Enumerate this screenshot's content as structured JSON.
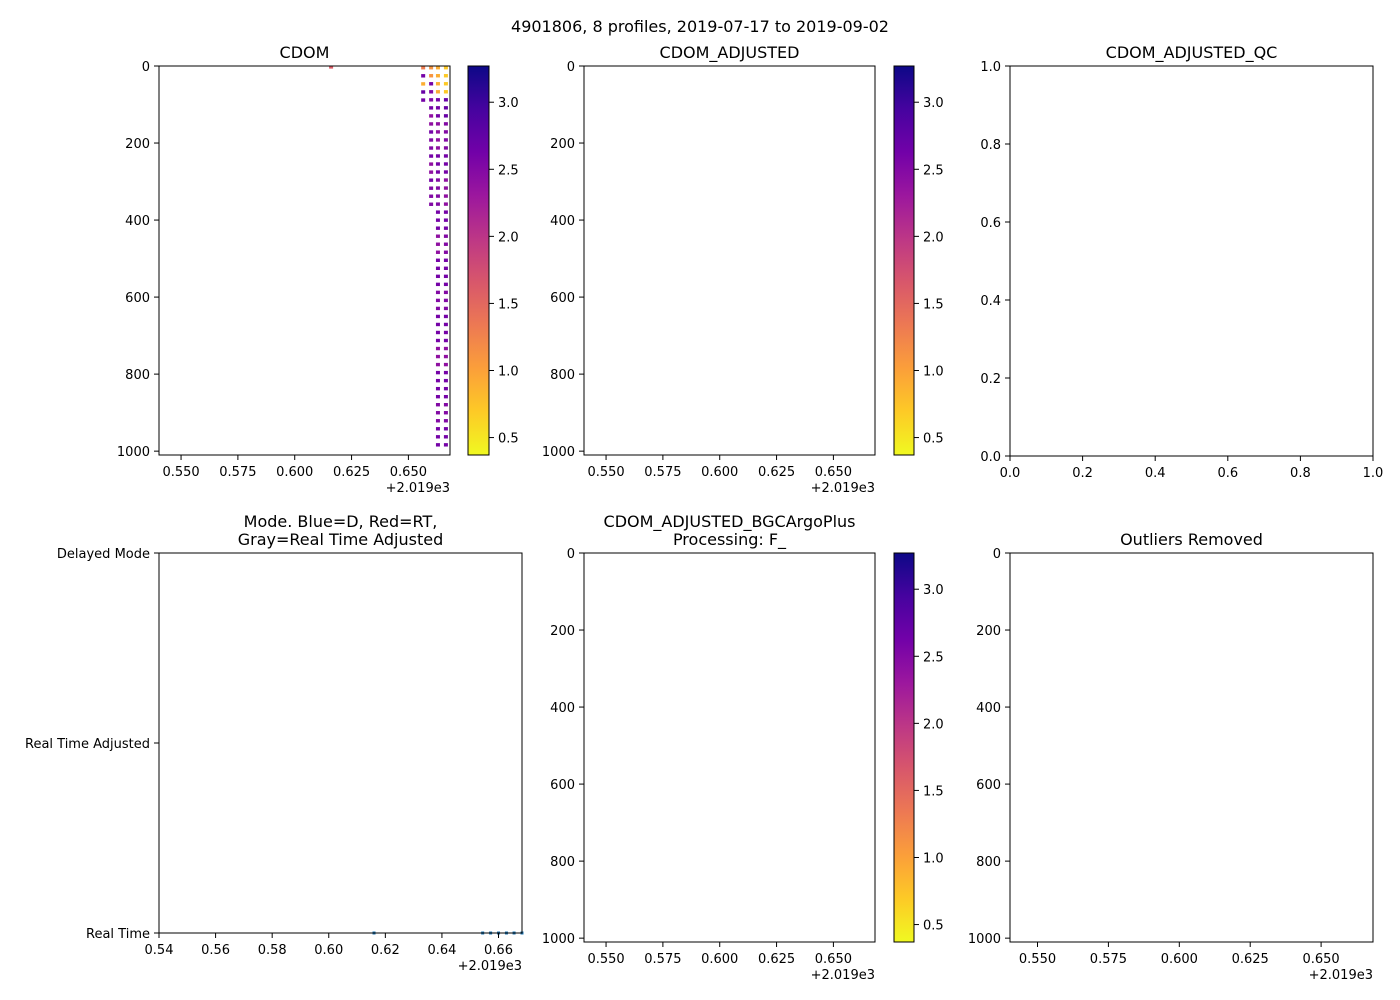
{
  "title": "4901806, 8 profiles, 2019-07-17 to 2019-09-02",
  "offset_label": "+2.019e3",
  "colors": {
    "cmap": [
      "#f0f921",
      "#fdca26",
      "#fb9f3a",
      "#ed7953",
      "#d8576b",
      "#bd3786",
      "#9c179e",
      "#7201a8",
      "#46039f",
      "#0d0887"
    ],
    "mode_point": "#1f77b4"
  },
  "chart_data": [
    {
      "id": "cdom",
      "type": "heatmap",
      "title": "CDOM",
      "xlim": [
        0.5403,
        0.6683
      ],
      "xticks": [
        0.55,
        0.575,
        0.6,
        0.625,
        0.65
      ],
      "xtick_labels": [
        "0.550",
        "0.575",
        "0.600",
        "0.625",
        "0.650"
      ],
      "ylim": [
        1010,
        0
      ],
      "yticks": [
        0,
        200,
        400,
        600,
        800,
        1000
      ],
      "ytick_labels": [
        "0",
        "200",
        "400",
        "600",
        "800",
        "1000"
      ],
      "colorbar": {
        "vmin": 0.37,
        "vmax": 3.27,
        "ticks": [
          0.5,
          1.0,
          1.5,
          2.0,
          2.5,
          3.0
        ],
        "tick_labels": [
          "0.5",
          "1.0",
          "1.5",
          "2.0",
          "2.5",
          "3.0"
        ]
      },
      "profiles": [
        {
          "x": 0.616,
          "depth_min": 0,
          "depth_max": 8,
          "values": [
            1.6
          ]
        },
        {
          "x": 0.6565,
          "depth_min": 0,
          "depth_max": 105,
          "values": [
            1.3,
            2.6,
            2.4,
            0.9,
            2.7,
            2.5,
            2.6,
            2.4
          ]
        },
        {
          "x": 0.66,
          "depth_min": 0,
          "depth_max": 365,
          "values": [
            1.1,
            2.6,
            2.5,
            2.6,
            2.4,
            2.6,
            2.5,
            2.6,
            2.4,
            2.6,
            2.5,
            2.5
          ]
        },
        {
          "x": 0.663,
          "depth_min": 0,
          "depth_max": 1000,
          "values": [
            0.9,
            2.6,
            2.4,
            2.6,
            2.5,
            2.6,
            2.4,
            2.6,
            2.5,
            2.6,
            2.4,
            2.6,
            2.5,
            2.6
          ]
        },
        {
          "x": 0.6665,
          "depth_min": 0,
          "depth_max": 1000,
          "values": [
            0.7,
            2.7,
            2.5,
            2.6,
            2.4,
            2.6,
            2.5,
            2.6,
            2.5,
            2.6,
            2.4,
            2.6,
            2.5,
            2.6
          ]
        }
      ]
    },
    {
      "id": "cdom_adjusted",
      "type": "heatmap",
      "title": "CDOM_ADJUSTED",
      "xlim": [
        0.5403,
        0.6683
      ],
      "xticks": [
        0.55,
        0.575,
        0.6,
        0.625,
        0.65
      ],
      "xtick_labels": [
        "0.550",
        "0.575",
        "0.600",
        "0.625",
        "0.650"
      ],
      "ylim": [
        1010,
        0
      ],
      "yticks": [
        0,
        200,
        400,
        600,
        800,
        1000
      ],
      "ytick_labels": [
        "0",
        "200",
        "400",
        "600",
        "800",
        "1000"
      ],
      "colorbar": {
        "vmin": 0.37,
        "vmax": 3.27,
        "ticks": [
          0.5,
          1.0,
          1.5,
          2.0,
          2.5,
          3.0
        ],
        "tick_labels": [
          "0.5",
          "1.0",
          "1.5",
          "2.0",
          "2.5",
          "3.0"
        ]
      },
      "profiles": []
    },
    {
      "id": "cdom_adjusted_qc",
      "type": "scatter",
      "title": "CDOM_ADJUSTED_QC",
      "xlim": [
        0,
        1
      ],
      "xticks": [
        0,
        0.2,
        0.4,
        0.6,
        0.8,
        1.0
      ],
      "xtick_labels": [
        "0.0",
        "0.2",
        "0.4",
        "0.6",
        "0.8",
        "1.0"
      ],
      "ylim": [
        0,
        1
      ],
      "yticks": [
        0,
        0.2,
        0.4,
        0.6,
        0.8,
        1.0
      ],
      "ytick_labels": [
        "0.0",
        "0.2",
        "0.4",
        "0.6",
        "0.8",
        "1.0"
      ],
      "points": []
    },
    {
      "id": "mode",
      "type": "scatter",
      "title": "Mode. Blue=D, Red=RT,",
      "title_line2": "Gray=Real Time Adjusted",
      "xlim": [
        0.54,
        0.6683
      ],
      "xticks": [
        0.54,
        0.56,
        0.58,
        0.6,
        0.62,
        0.64,
        0.66
      ],
      "xtick_labels": [
        "0.54",
        "0.56",
        "0.58",
        "0.60",
        "0.62",
        "0.64",
        "0.66"
      ],
      "ylim": [
        0,
        2
      ],
      "yticks": [
        0,
        1,
        2
      ],
      "ytick_labels": [
        "Real Time",
        "Real Time Adjusted",
        "Delayed Mode"
      ],
      "points": [
        {
          "x": 0.616,
          "y": 0
        },
        {
          "x": 0.6544,
          "y": 0
        },
        {
          "x": 0.6572,
          "y": 0
        },
        {
          "x": 0.66,
          "y": 0
        },
        {
          "x": 0.6628,
          "y": 0
        },
        {
          "x": 0.6655,
          "y": 0
        },
        {
          "x": 0.6683,
          "y": 0
        }
      ]
    },
    {
      "id": "cdom_bgc",
      "type": "heatmap",
      "title": "CDOM_ADJUSTED_BGCArgoPlus",
      "title_line2": "Processing: F_",
      "xlim": [
        0.5403,
        0.6683
      ],
      "xticks": [
        0.55,
        0.575,
        0.6,
        0.625,
        0.65
      ],
      "xtick_labels": [
        "0.550",
        "0.575",
        "0.600",
        "0.625",
        "0.650"
      ],
      "ylim": [
        1010,
        0
      ],
      "yticks": [
        0,
        200,
        400,
        600,
        800,
        1000
      ],
      "ytick_labels": [
        "0",
        "200",
        "400",
        "600",
        "800",
        "1000"
      ],
      "colorbar": {
        "vmin": 0.37,
        "vmax": 3.27,
        "ticks": [
          0.5,
          1.0,
          1.5,
          2.0,
          2.5,
          3.0
        ],
        "tick_labels": [
          "0.5",
          "1.0",
          "1.5",
          "2.0",
          "2.5",
          "3.0"
        ]
      },
      "profiles": []
    },
    {
      "id": "outliers",
      "type": "heatmap",
      "title": "Outliers Removed",
      "xlim": [
        0.5403,
        0.6683
      ],
      "xticks": [
        0.55,
        0.575,
        0.6,
        0.625,
        0.65
      ],
      "xtick_labels": [
        "0.550",
        "0.575",
        "0.600",
        "0.625",
        "0.650"
      ],
      "ylim": [
        1010,
        0
      ],
      "yticks": [
        0,
        200,
        400,
        600,
        800,
        1000
      ],
      "ytick_labels": [
        "0",
        "200",
        "400",
        "600",
        "800",
        "1000"
      ],
      "profiles": []
    }
  ]
}
